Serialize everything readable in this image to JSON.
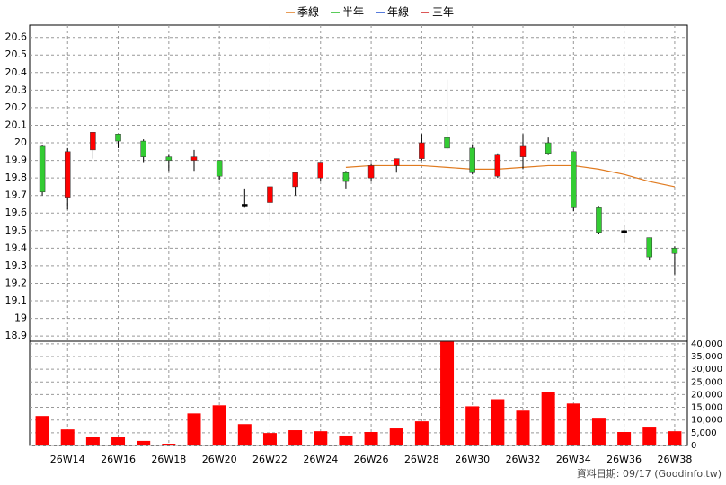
{
  "chart_data": {
    "type": "candlestick",
    "categories": [
      null,
      "26W14",
      null,
      "26W16",
      null,
      "26W18",
      null,
      "26W20",
      null,
      "26W22",
      null,
      "26W24",
      null,
      "26W26",
      null,
      "26W28",
      null,
      "26W30",
      null,
      "26W32",
      null,
      "26W34",
      null,
      "26W36",
      null,
      "26W38"
    ],
    "open": [
      19.98,
      19.69,
      19.96,
      20.05,
      20.01,
      19.92,
      19.9,
      19.9,
      19.65,
      19.66,
      19.75,
      19.8,
      19.83,
      19.8,
      19.87,
      19.91,
      20.03,
      19.97,
      19.81,
      19.92,
      20.0,
      19.95,
      19.63,
      19.5,
      19.46,
      19.4
    ],
    "high": [
      19.99,
      19.97,
      20.06,
      20.05,
      20.02,
      19.93,
      19.96,
      19.9,
      19.74,
      19.75,
      19.83,
      19.89,
      19.84,
      19.88,
      19.91,
      20.05,
      20.36,
      19.99,
      19.94,
      20.05,
      20.03,
      19.95,
      19.64,
      19.53,
      19.46,
      19.41
    ],
    "low": [
      19.7,
      19.62,
      19.91,
      19.97,
      19.89,
      19.84,
      19.84,
      19.79,
      19.63,
      19.56,
      19.7,
      19.78,
      19.74,
      19.78,
      19.83,
      19.9,
      19.96,
      19.82,
      19.8,
      19.85,
      19.93,
      19.61,
      19.48,
      19.43,
      19.33,
      19.25
    ],
    "close": [
      19.72,
      19.95,
      20.06,
      20.01,
      19.92,
      19.9,
      19.92,
      19.81,
      19.64,
      19.75,
      19.83,
      19.89,
      19.78,
      19.87,
      19.91,
      20.0,
      19.97,
      19.83,
      19.93,
      19.98,
      19.94,
      19.63,
      19.49,
      19.49,
      19.35,
      19.37
    ],
    "up_color": "#ff0000",
    "down_color": "#33cc33",
    "flat_color": "#000000",
    "series": [
      {
        "name": "季線",
        "color": "#e07a1f",
        "values": [
          null,
          null,
          null,
          null,
          null,
          null,
          null,
          null,
          null,
          null,
          null,
          null,
          19.86,
          19.87,
          19.87,
          19.87,
          19.86,
          19.85,
          19.85,
          19.86,
          19.87,
          19.87,
          19.85,
          19.82,
          19.78,
          19.75
        ]
      },
      {
        "name": "半年",
        "color": "#22bb22",
        "values": [
          null,
          null,
          null,
          null,
          null,
          null,
          null,
          null,
          null,
          null,
          null,
          null,
          null,
          null,
          null,
          null,
          null,
          null,
          null,
          null,
          null,
          null,
          null,
          null,
          null,
          null
        ]
      },
      {
        "name": "年線",
        "color": "#1f4fd0",
        "values": [
          null,
          null,
          null,
          null,
          null,
          null,
          null,
          null,
          null,
          null,
          null,
          null,
          null,
          null,
          null,
          null,
          null,
          null,
          null,
          null,
          null,
          null,
          null,
          null,
          null,
          null
        ]
      },
      {
        "name": "三年",
        "color": "#d01f1f",
        "values": [
          null,
          null,
          null,
          null,
          null,
          null,
          null,
          null,
          null,
          null,
          null,
          null,
          null,
          null,
          null,
          null,
          null,
          null,
          null,
          null,
          null,
          null,
          null,
          null,
          null,
          null
        ]
      }
    ],
    "ylim": [
      18.87,
      20.67
    ],
    "yticks": [
      18.9,
      19,
      19.1,
      19.2,
      19.3,
      19.4,
      19.5,
      19.6,
      19.7,
      19.8,
      19.9,
      20,
      20.1,
      20.2,
      20.3,
      20.4,
      20.5,
      20.6
    ],
    "volume": {
      "color": "#ff0000",
      "values": [
        11600,
        6300,
        3200,
        3500,
        1800,
        700,
        12600,
        15800,
        8400,
        4900,
        6000,
        5600,
        3900,
        5300,
        6700,
        9500,
        40800,
        15400,
        18200,
        13700,
        21000,
        16500,
        10900,
        5300,
        7400,
        5600
      ],
      "ylim": [
        0,
        41000
      ],
      "yticks": [
        0,
        {
          "value": 5000,
          "label": "5,000"
        },
        {
          "value": 10000,
          "label": "10,000"
        },
        {
          "value": 15000,
          "label": "15,000"
        },
        {
          "value": 20000,
          "label": "20,000"
        },
        {
          "value": 25000,
          "label": "25,000"
        },
        {
          "value": 30000,
          "label": "30,000"
        },
        {
          "value": 35000,
          "label": "35,000"
        },
        {
          "value": 40000,
          "label": "40,000"
        }
      ]
    },
    "grid": true,
    "footer": "資料日期: 09/17  (Goodinfo.tw)"
  }
}
